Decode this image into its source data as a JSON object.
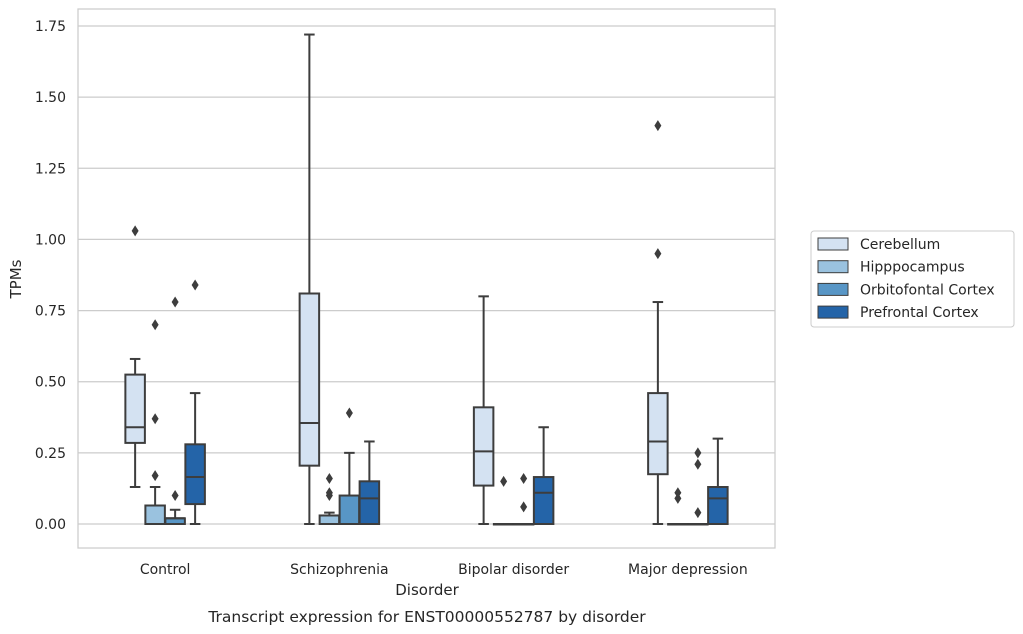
{
  "chart_data": {
    "type": "box",
    "xlabel": "Disorder",
    "ylabel": "TPMs",
    "caption": "Transcript expression for ENST00000552787 by disorder",
    "ylim": [
      -0.085,
      1.81
    ],
    "yticks": [
      "0.00",
      "0.25",
      "0.50",
      "0.75",
      "1.00",
      "1.25",
      "1.50",
      "1.75"
    ],
    "grid": "horizontal",
    "legend_position": "right",
    "categories": [
      "Control",
      "Schizophrenia",
      "Bipolar disorder",
      "Major depression"
    ],
    "series": [
      {
        "name": "Cerebellum",
        "color": "#d4e2f2",
        "boxes": [
          {
            "whislo": 0.13,
            "q1": 0.285,
            "median": 0.34,
            "q3": 0.525,
            "whishi": 0.58,
            "fliers": [
              1.03
            ]
          },
          {
            "whislo": 0.0,
            "q1": 0.205,
            "median": 0.355,
            "q3": 0.81,
            "whishi": 1.72,
            "fliers": []
          },
          {
            "whislo": 0.0,
            "q1": 0.135,
            "median": 0.255,
            "q3": 0.41,
            "whishi": 0.8,
            "fliers": []
          },
          {
            "whislo": 0.0,
            "q1": 0.175,
            "median": 0.29,
            "q3": 0.46,
            "whishi": 0.78,
            "fliers": [
              0.95,
              1.4
            ]
          }
        ]
      },
      {
        "name": "Hipppocampus",
        "color": "#9ac2df",
        "boxes": [
          {
            "whislo": 0.0,
            "q1": 0.0,
            "median": 0.0,
            "q3": 0.065,
            "whishi": 0.13,
            "fliers": [
              0.17,
              0.37,
              0.7
            ]
          },
          {
            "whislo": 0.0,
            "q1": 0.0,
            "median": 0.03,
            "q3": 0.03,
            "whishi": 0.04,
            "fliers": [
              0.1,
              0.11,
              0.16
            ]
          },
          {
            "whislo": 0.0,
            "q1": 0.0,
            "median": 0.0,
            "q3": 0.0,
            "whishi": 0.0,
            "fliers": [
              0.15
            ]
          },
          {
            "whislo": 0.0,
            "q1": 0.0,
            "median": 0.0,
            "q3": 0.0,
            "whishi": 0.0,
            "fliers": [
              0.09,
              0.11
            ]
          }
        ]
      },
      {
        "name": "Orbitofontal Cortex",
        "color": "#5896c6",
        "boxes": [
          {
            "whislo": 0.0,
            "q1": 0.0,
            "median": 0.02,
            "q3": 0.02,
            "whishi": 0.05,
            "fliers": [
              0.1,
              0.78
            ]
          },
          {
            "whislo": 0.0,
            "q1": 0.0,
            "median": 0.0,
            "q3": 0.1,
            "whishi": 0.25,
            "fliers": [
              0.39
            ]
          },
          {
            "whislo": 0.0,
            "q1": 0.0,
            "median": 0.0,
            "q3": 0.0,
            "whishi": 0.0,
            "fliers": [
              0.06,
              0.16
            ]
          },
          {
            "whislo": 0.0,
            "q1": 0.0,
            "median": 0.0,
            "q3": 0.0,
            "whishi": 0.0,
            "fliers": [
              0.04,
              0.21,
              0.25
            ]
          }
        ]
      },
      {
        "name": "Prefrontal Cortex",
        "color": "#2464a8",
        "boxes": [
          {
            "whislo": 0.0,
            "q1": 0.07,
            "median": 0.165,
            "q3": 0.28,
            "whishi": 0.46,
            "fliers": [
              0.84
            ]
          },
          {
            "whislo": 0.0,
            "q1": 0.0,
            "median": 0.09,
            "q3": 0.15,
            "whishi": 0.29,
            "fliers": []
          },
          {
            "whislo": 0.0,
            "q1": 0.0,
            "median": 0.11,
            "q3": 0.165,
            "whishi": 0.34,
            "fliers": []
          },
          {
            "whislo": 0.0,
            "q1": 0.0,
            "median": 0.09,
            "q3": 0.13,
            "whishi": 0.3,
            "fliers": []
          }
        ]
      }
    ]
  }
}
